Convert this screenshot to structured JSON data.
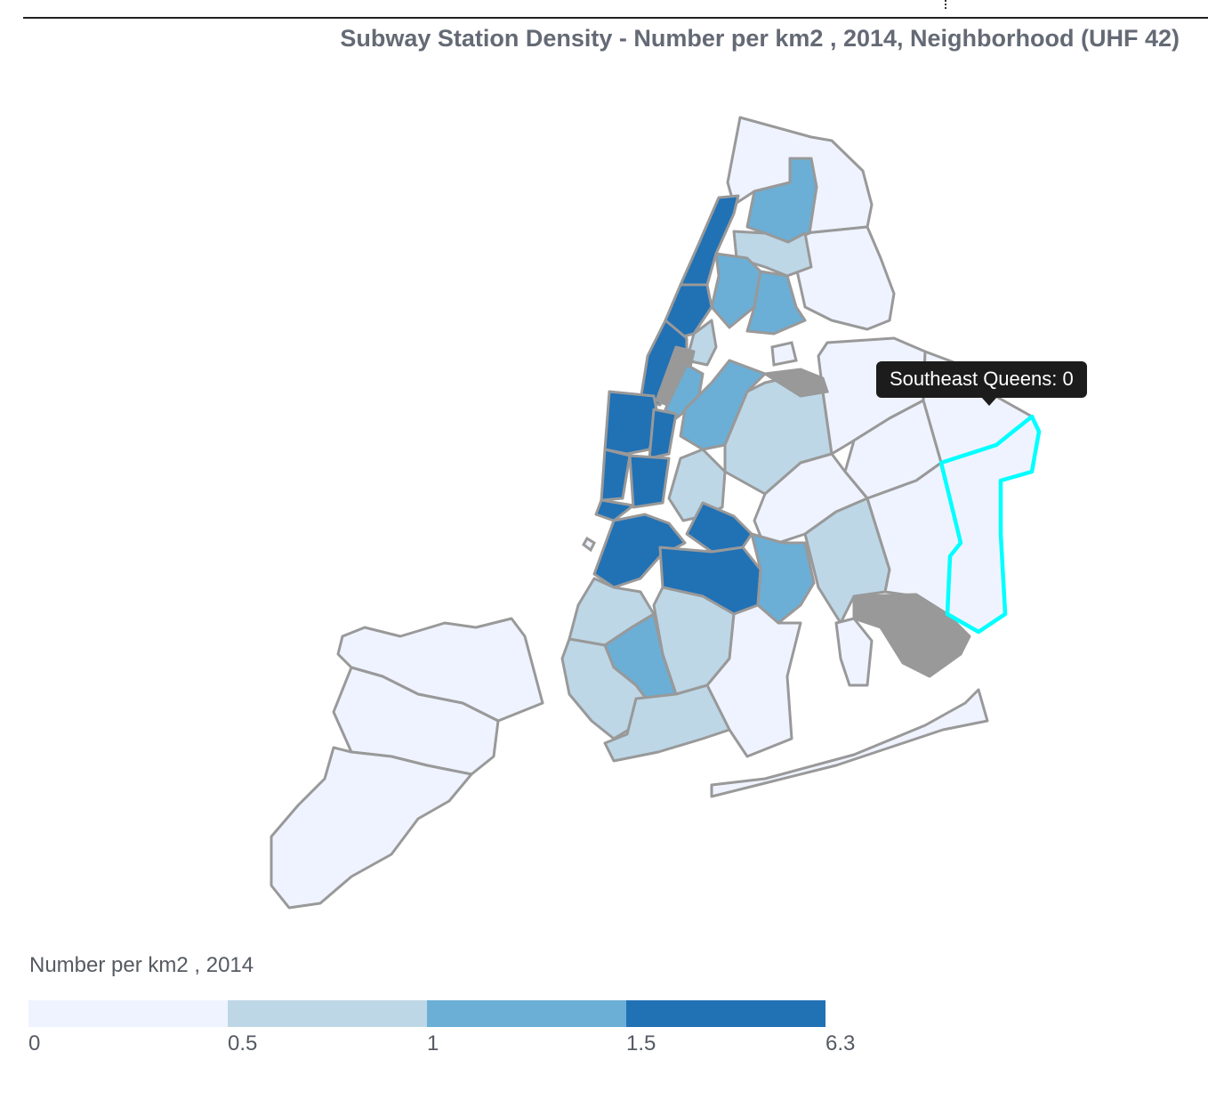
{
  "title": "Subway Station Density - Number per km2 , 2014, Neighborhood (UHF 42)",
  "tooltip": {
    "text": "Southeast Queens: 0"
  },
  "legend": {
    "title": "Number per km2 , 2014",
    "ticks": [
      "0",
      "0.5",
      "1",
      "1.5",
      "6.3"
    ],
    "colors": [
      "#eff3ff",
      "#bdd7e7",
      "#6baed6",
      "#2171b5"
    ],
    "no_data_color": "#999999",
    "highlight_color": "#00ffff"
  },
  "chart_data": {
    "type": "choropleth",
    "geography": "Neighborhood (UHF 42)",
    "value_label": "Number per km2 , 2014",
    "bins": [
      {
        "range": [
          0,
          0.5
        ],
        "color": "#eff3ff"
      },
      {
        "range": [
          0.5,
          1
        ],
        "color": "#bdd7e7"
      },
      {
        "range": [
          1,
          1.5
        ],
        "color": "#6baed6"
      },
      {
        "range": [
          1.5,
          6.3
        ],
        "color": "#2171b5"
      }
    ],
    "highlighted_region": {
      "name": "Southeast Queens",
      "value": 0
    }
  }
}
